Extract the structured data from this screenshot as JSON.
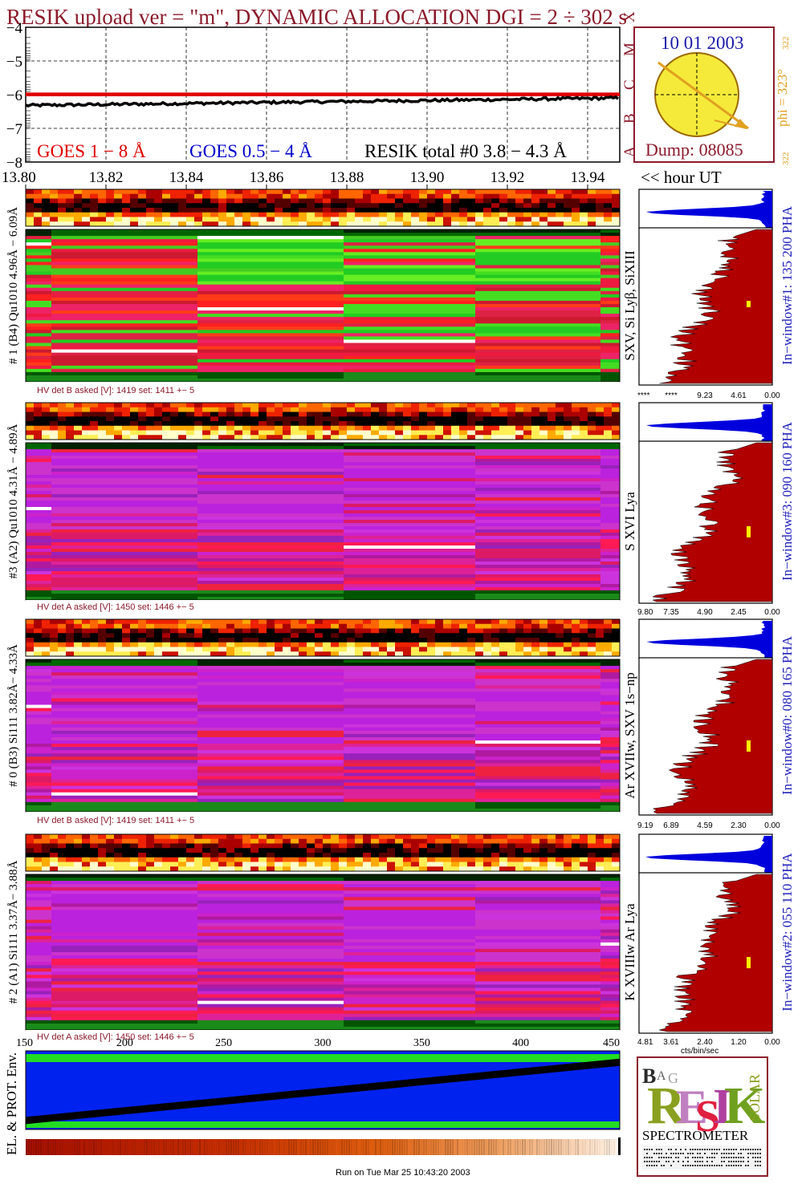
{
  "title": "RESIK upload ver = \"m\", DYNAMIC ALLOCATION  DGI =   2 ÷ 302 s",
  "colors": {
    "title": "#8b1a2b",
    "goes_red": "#e00000",
    "goes_blue": "#0000cc",
    "orange": "#e0a020",
    "pha_red": "#b00000",
    "pha_blue": "#0000dd",
    "env_blue": "#0022ee",
    "env_green": "#22dd22",
    "label_blue": "#2222bb"
  },
  "flux_panel": {
    "y_ticks": [
      "−4",
      "−5",
      "−6",
      "−7",
      "−8"
    ],
    "class_labels": [
      "A",
      "B",
      "C",
      "M",
      "X"
    ],
    "legend": {
      "goes_long": "GOES 1 − 8 Å",
      "goes_short": "GOES 0.5 − 4 Å",
      "resik": "RESIK total #0  3.8 − 4.3 Å"
    },
    "x_ticks": [
      "13.80",
      "13.82",
      "13.84",
      "13.86",
      "13.88",
      "13.90",
      "13.92",
      "13.94"
    ],
    "hour_label": "<< hour UT"
  },
  "sun_panel": {
    "date": "10 01 2003",
    "dump": "Dump: 08085",
    "phi": "phi = 323°",
    "phi_top": "322",
    "phi_bottom": "322"
  },
  "detectors": [
    {
      "side_label": "# 1 (B4) Qu1010 4.96Å − 6.09Å",
      "line_label": "SXV, Si Lyβ, SiXIII",
      "hv": "HV det B asked [V]:  1419  set:  1411  +−    5",
      "pha_ticks": [
        "****",
        "****",
        "9.23",
        "4.61",
        "0.00"
      ],
      "window": "In−window#1:  135 200 PHA",
      "scheme": "green"
    },
    {
      "side_label": "#3 (A2) Qu1010  4.31Å − 4.89Å",
      "line_label": "S XVI Lya",
      "hv": "HV det A asked [V]:  1450  set:  1446  +−    5",
      "pha_ticks": [
        "9.80",
        "7.35",
        "4.90",
        "2.45",
        "0.00"
      ],
      "window": "In−window#3:  090 160 PHA",
      "scheme": "purple"
    },
    {
      "side_label": "# 0 (B3) Si111  3.82Å− 4.33Å",
      "line_label": "Ar XVIIw,  SXV 1s−np",
      "hv": "HV det B asked [V]:  1419  set:  1411  +−    5",
      "pha_ticks": [
        "9.19",
        "6.89",
        "4.59",
        "2.30",
        "0.00"
      ],
      "window": "In−window#0:  080 165 PHA",
      "scheme": "purple"
    },
    {
      "side_label": "# 2 (A1) Si111  3.37Å− 3.88Å",
      "line_label": "K XVIIIw  Ar Lya",
      "hv": "HV det A asked [V]:  1450  set:  1446  +−    5",
      "pha_ticks": [
        "4.81",
        "3.61",
        "2.40",
        "1.20",
        "0.00"
      ],
      "window": "In−window#2:  055 110 PHA",
      "scheme": "purple"
    }
  ],
  "pha_xlabel": "cts/bin/sec",
  "env_panel": {
    "label": "EL. & PROT. Env.",
    "x_ticks": [
      "150",
      "200",
      "250",
      "300",
      "350",
      "400",
      "450"
    ]
  },
  "logo": {
    "text": "RESIK",
    "letters_top": "BAG",
    "letters_side": "SOLAR",
    "caption": "SPECTROMETER"
  },
  "footer": "Run on Tue Mar 25 10:43:20 2003",
  "chart_data": {
    "type": "heatmap",
    "title": "RESIK upload ver = \"m\", DYNAMIC ALLOCATION  DGI =   2 ÷ 302 s",
    "flux_lightcurve": {
      "x_hour_ut": [
        13.8,
        13.82,
        13.84,
        13.86,
        13.88,
        13.9,
        13.92,
        13.94,
        13.95
      ],
      "resik_log": [
        -6.3,
        -6.28,
        -6.25,
        -6.22,
        -6.2,
        -6.18,
        -6.15,
        -6.12,
        -6.1
      ],
      "goes_long_log": [
        -6.0,
        -6.0,
        -6.0,
        -6.0,
        -6.0,
        -6.0,
        -6.0,
        -6.0,
        -6.0
      ],
      "ylim": [
        -8,
        -4
      ]
    },
    "env_trend": {
      "x": [
        150,
        450
      ],
      "y_fraction": [
        0.16,
        0.9
      ]
    }
  }
}
